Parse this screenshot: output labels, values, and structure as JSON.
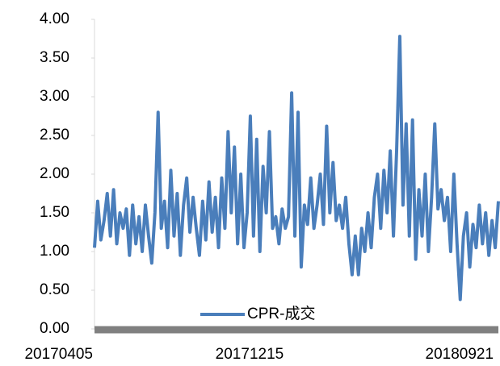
{
  "chart_data": {
    "type": "line",
    "categories": [
      "20170405",
      null,
      null,
      null,
      null,
      null,
      null,
      null,
      null,
      null,
      null,
      null,
      null,
      null,
      null,
      null,
      null,
      null,
      null,
      null,
      null,
      null,
      null,
      null,
      null,
      null,
      null,
      null,
      null,
      null,
      null,
      null,
      null,
      null,
      null,
      null,
      null,
      null,
      null,
      null,
      null,
      null,
      null,
      null,
      null,
      null,
      null,
      null,
      null,
      null,
      null,
      null,
      null,
      null,
      null,
      null,
      null,
      null,
      null,
      null,
      "20171215",
      null,
      null,
      null,
      null,
      null,
      null,
      null,
      null,
      null,
      null,
      null,
      null,
      null,
      null,
      null,
      null,
      null,
      null,
      null,
      null,
      null,
      null,
      null,
      null,
      null,
      null,
      null,
      null,
      null,
      null,
      null,
      null,
      null,
      null,
      null,
      null,
      null,
      null,
      null,
      null,
      null,
      null,
      null,
      null,
      null,
      null,
      null,
      null,
      null,
      null,
      null,
      null,
      null,
      null,
      null,
      null,
      null,
      null,
      null,
      null,
      null,
      null,
      null,
      null,
      null,
      "20180921",
      null
    ],
    "series": [
      {
        "name": "CPR-成交",
        "color": "#4a7ebb",
        "values": [
          1.05,
          1.65,
          1.15,
          1.4,
          1.75,
          1.2,
          1.8,
          1.1,
          1.5,
          1.3,
          1.55,
          0.95,
          1.6,
          1.1,
          1.45,
          1.0,
          1.6,
          1.2,
          0.85,
          1.5,
          2.8,
          1.3,
          1.65,
          1.05,
          2.05,
          1.2,
          1.75,
          0.95,
          1.6,
          1.95,
          1.25,
          1.7,
          1.3,
          0.95,
          1.65,
          1.15,
          1.9,
          1.25,
          1.7,
          1.05,
          1.95,
          1.3,
          2.55,
          1.5,
          2.35,
          1.1,
          2.0,
          1.05,
          1.5,
          2.75,
          1.2,
          2.45,
          1.0,
          2.1,
          1.5,
          2.55,
          1.3,
          1.45,
          1.1,
          1.55,
          1.3,
          1.45,
          3.05,
          1.2,
          2.8,
          0.8,
          1.6,
          1.35,
          1.95,
          1.3,
          1.6,
          2.0,
          1.35,
          2.62,
          1.5,
          2.15,
          1.4,
          1.6,
          1.3,
          1.7,
          1.1,
          0.7,
          1.2,
          0.7,
          1.3,
          1.0,
          1.5,
          1.05,
          1.7,
          2.0,
          1.3,
          2.05,
          1.5,
          2.3,
          1.2,
          2.3,
          3.78,
          1.6,
          2.65,
          1.2,
          2.7,
          0.9,
          1.8,
          1.2,
          2.0,
          1.0,
          1.7,
          2.65,
          1.55,
          1.8,
          1.4,
          1.7,
          1.0,
          2.0,
          1.1,
          0.38,
          1.2,
          1.5,
          0.8,
          1.35,
          1.05,
          1.6,
          1.1,
          1.5,
          0.95,
          1.4,
          1.05,
          1.65
        ]
      }
    ],
    "ylim": [
      0,
      4
    ],
    "yticks": [
      {
        "value": 0,
        "label": "0.00"
      },
      {
        "value": 0.5,
        "label": "0.50"
      },
      {
        "value": 1,
        "label": "1.00"
      },
      {
        "value": 1.5,
        "label": "1.50"
      },
      {
        "value": 2,
        "label": "2.00"
      },
      {
        "value": 2.5,
        "label": "2.50"
      },
      {
        "value": 3,
        "label": "3.00"
      },
      {
        "value": 3.5,
        "label": "3.50"
      },
      {
        "value": 4,
        "label": "4.00"
      }
    ],
    "legend": "bottom"
  }
}
